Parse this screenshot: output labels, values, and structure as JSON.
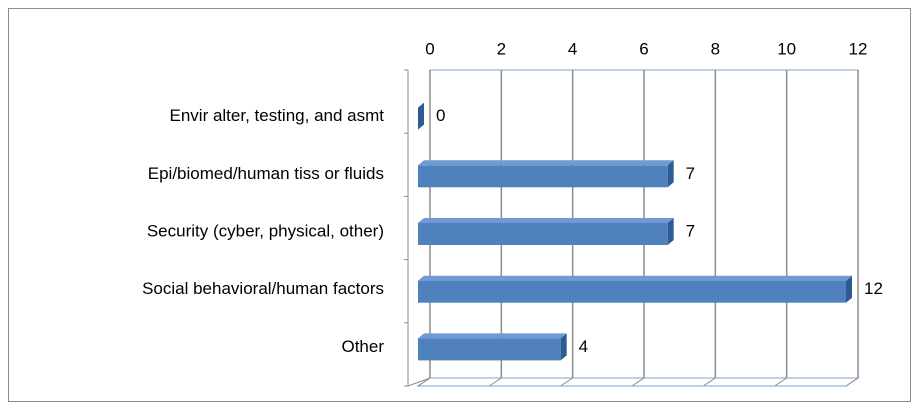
{
  "chart_data": {
    "type": "bar",
    "orientation": "horizontal",
    "categories": [
      "Envir alter, testing, and asmt",
      "Epi/biomed/human tiss or fluids",
      "Security (cyber, physical, other)",
      "Social behavioral/human factors",
      "Other"
    ],
    "values": [
      0,
      7,
      7,
      12,
      4
    ],
    "color": "#4f81bd",
    "xlim": [
      0,
      12
    ],
    "xticks": [
      0,
      2,
      4,
      6,
      8,
      10,
      12
    ],
    "grid": true
  }
}
